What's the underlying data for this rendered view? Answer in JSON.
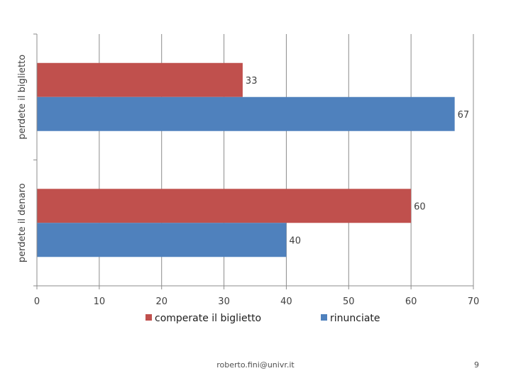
{
  "chart_data": {
    "type": "bar",
    "orientation": "horizontal",
    "categories": [
      "perdete il denaro",
      "perdete il biglietto"
    ],
    "series": [
      {
        "name": "comperate il biglietto",
        "values": [
          60,
          33
        ],
        "color": "#c0504d"
      },
      {
        "name": "rinunciate",
        "values": [
          40,
          67
        ],
        "color": "#4f81bd"
      }
    ],
    "xlim": [
      0,
      70
    ],
    "xticks": [
      0,
      10,
      20,
      30,
      40,
      50,
      60,
      70
    ],
    "grid": true,
    "legend": "bottom",
    "data_labels": true
  },
  "footer": {
    "email": "roberto.fini@univr.it",
    "page_number": "9"
  }
}
